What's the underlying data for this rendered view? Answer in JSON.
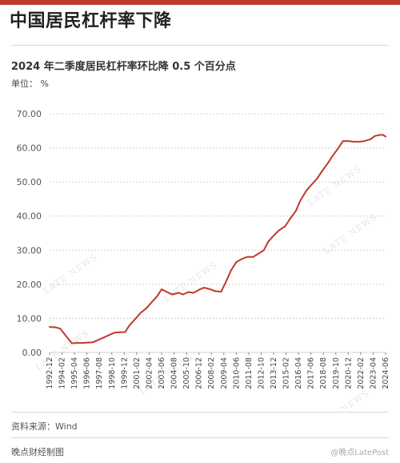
{
  "header": {
    "title": "中国居民杠杆率下降"
  },
  "footer": {
    "source": "资料来源：Wind",
    "credit": "晚点财经制图",
    "watermark": "@晚点LatePost"
  },
  "watermark_text": "LATE NEWS",
  "colors": {
    "accent": "#c0392b",
    "line": "#c0392b",
    "grid": "#d0d0d0"
  },
  "chart_data": {
    "type": "line",
    "title": "2024 年二季度居民杠杆率环比降 0.5 个百分点",
    "ylabel": "单位： %",
    "xlabel": "",
    "ylim": [
      0,
      70
    ],
    "yticks": [
      "0.00",
      "10.00",
      "20.00",
      "30.00",
      "40.00",
      "50.00",
      "60.00",
      "70.00"
    ],
    "grid": "horizontal",
    "x_tick_labels": [
      "1992-12",
      "1994-02",
      "1995-04",
      "1996-06",
      "1997-08",
      "1998-10",
      "1999-12",
      "2001-02",
      "2002-04",
      "2003-06",
      "2004-08",
      "2005-10",
      "2006-12",
      "2008-02",
      "2009-04",
      "2010-06",
      "2011-08",
      "2012-10",
      "2013-12",
      "2015-02",
      "2016-04",
      "2017-06",
      "2018-08",
      "2019-10",
      "2020-12",
      "2022-02",
      "2023-04",
      "2024-06"
    ],
    "series": [
      {
        "x": [
          "1992-12",
          "1993-06",
          "1993-12",
          "1994-06",
          "1995-01",
          "1995-06",
          "1996-01",
          "1996-06",
          "1997-01",
          "1997-06",
          "1998-01",
          "1998-06",
          "1999-01",
          "1999-06",
          "2000-01",
          "2000-06",
          "2001-01",
          "2001-06",
          "2002-01",
          "2002-06",
          "2003-01",
          "2003-06",
          "2004-01",
          "2004-06",
          "2005-01",
          "2005-06",
          "2005-12",
          "2006-06",
          "2007-01",
          "2007-06",
          "2008-01",
          "2008-06",
          "2009-01",
          "2009-06",
          "2009-12",
          "2010-06",
          "2011-01",
          "2011-06",
          "2012-01",
          "2012-06",
          "2013-01",
          "2013-06",
          "2014-01",
          "2014-06",
          "2015-01",
          "2015-06",
          "2016-01",
          "2016-06",
          "2017-01",
          "2017-06",
          "2018-01",
          "2018-06",
          "2019-01",
          "2019-06",
          "2020-01",
          "2020-06",
          "2020-12",
          "2021-06",
          "2022-01",
          "2022-06",
          "2023-01",
          "2023-06",
          "2023-12",
          "2024-03",
          "2024-06"
        ],
        "values": [
          7.5,
          7.4,
          7.0,
          5.0,
          2.7,
          2.8,
          2.8,
          2.9,
          3.0,
          3.6,
          4.4,
          5.0,
          5.8,
          5.9,
          6.0,
          8.0,
          10.0,
          11.5,
          13.0,
          14.5,
          16.5,
          18.5,
          17.6,
          17.0,
          17.5,
          17.0,
          17.7,
          17.5,
          18.5,
          19.0,
          18.5,
          18.0,
          17.8,
          20.5,
          24.0,
          26.5,
          27.5,
          28.0,
          28.0,
          28.8,
          30.0,
          32.5,
          34.5,
          35.8,
          37.0,
          39.0,
          41.5,
          44.5,
          47.5,
          49.0,
          51.0,
          53.0,
          55.5,
          57.5,
          60.0,
          62.0,
          62.0,
          61.8,
          61.8,
          62.0,
          62.5,
          63.5,
          63.8,
          63.8,
          63.3
        ]
      }
    ]
  }
}
